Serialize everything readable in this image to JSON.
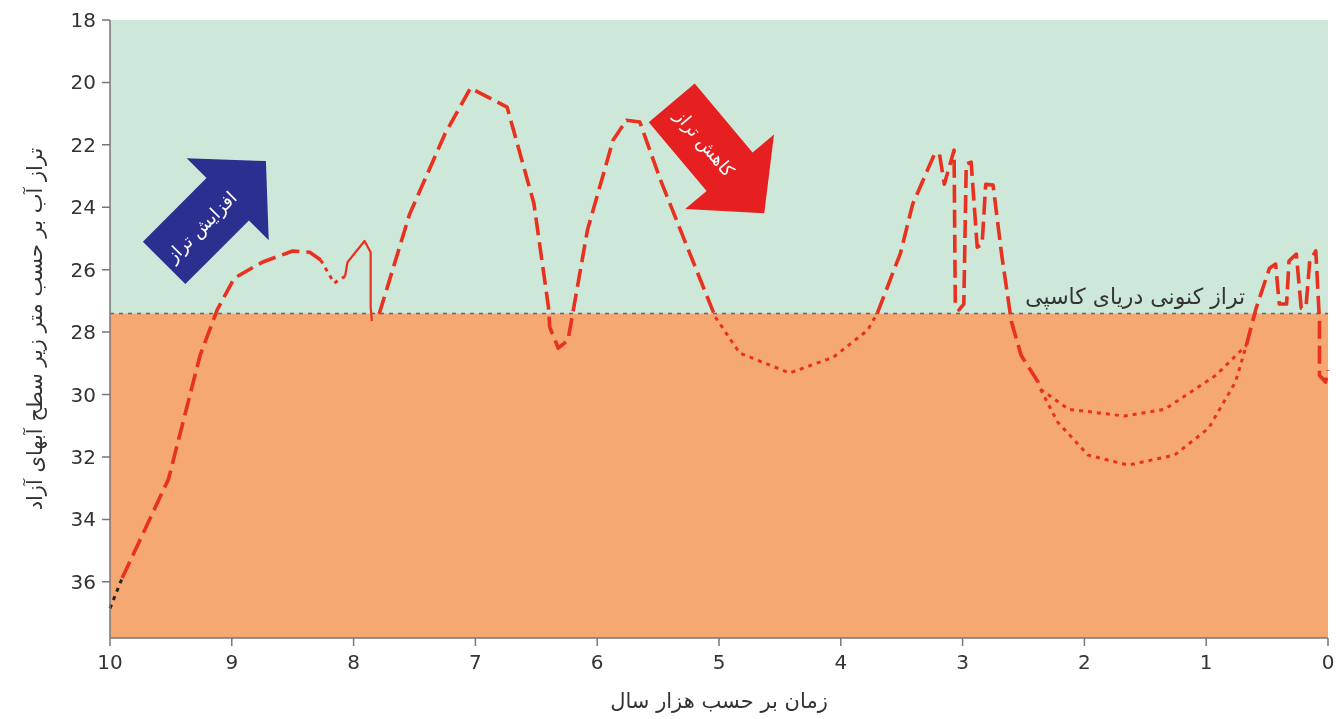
{
  "chart_data": {
    "type": "line",
    "xlabel": "زمان بر حسب هزار سال",
    "ylabel": "تراز آب بر حسب متر زیر سطح آبهای آزاد",
    "xlim": [
      10,
      0
    ],
    "ylim": [
      37.8,
      18
    ],
    "xticks": [
      10,
      9,
      8,
      7,
      6,
      5,
      4,
      3,
      2,
      1,
      0
    ],
    "yticks": [
      18,
      20,
      22,
      24,
      26,
      28,
      30,
      32,
      34,
      36
    ],
    "bands": [
      {
        "axis": "y",
        "from": 18,
        "to": 27.4,
        "color": "#cde8d8"
      },
      {
        "axis": "y",
        "from": 27.4,
        "to": 37.8,
        "color": "#f5a872"
      }
    ],
    "ref_lines": [
      {
        "axis": "y",
        "value": 27.4,
        "label": "تراز کنونی دریای کاسپی",
        "color": "#666666",
        "line_style": "dotted"
      }
    ],
    "annotations": [
      "افزایش تراز",
      "کاهش تراز"
    ],
    "series": [
      {
        "type": "line",
        "color": "#222222",
        "line_style": "dotted",
        "x": [
          10,
          9.9
        ],
        "values": [
          36.85,
          35.88
        ]
      },
      {
        "type": "line",
        "color": "#e8311f",
        "line_style": "dashed",
        "x": [
          9.9,
          9.52,
          9.26,
          9.12,
          8.98,
          8.75,
          8.5,
          8.36,
          8.27
        ],
        "values": [
          35.88,
          32.71,
          28.74,
          27.29,
          26.27,
          25.76,
          25.4,
          25.44,
          25.69
        ]
      },
      {
        "type": "line",
        "color": "#e8311f",
        "line_style": "dotted",
        "x": [
          8.27,
          8.16,
          8.07
        ],
        "values": [
          25.69,
          26.43,
          26.21
        ]
      },
      {
        "type": "line",
        "color": "#e8311f",
        "line_style": "solid",
        "x": [
          8.07,
          8.05,
          7.91,
          7.86,
          7.86,
          7.85
        ],
        "values": [
          26.21,
          25.76,
          25.08,
          25.44,
          27.2,
          27.65
        ]
      },
      {
        "type": "line",
        "color": "#e8311f",
        "line_style": "dashed",
        "x": [
          7.79,
          7.73,
          7.54,
          7.25,
          7.04,
          6.74,
          6.52,
          6.4,
          6.39,
          6.32,
          6.24,
          6.08,
          5.87,
          5.76,
          5.65,
          5.48,
          5.26,
          5.03
        ],
        "values": [
          27.42,
          26.65,
          24.22,
          21.65,
          20.18,
          20.79,
          23.87,
          27.2,
          27.84,
          28.51,
          28.26,
          24.73,
          21.85,
          21.21,
          21.27,
          23.13,
          25.28,
          27.52
        ]
      },
      {
        "type": "line",
        "color": "#e8311f",
        "line_style": "dotted",
        "x": [
          5.03,
          4.83,
          4.42,
          4.06,
          3.78,
          3.7
        ],
        "values": [
          27.52,
          28.67,
          29.31,
          28.8,
          27.94,
          27.39
        ]
      },
      {
        "type": "line",
        "color": "#e8311f",
        "line_style": "dashed",
        "x": [
          3.7,
          3.51,
          3.41,
          3.23,
          3.19,
          3.15,
          3.07,
          3.06,
          3.03,
          2.99,
          2.97,
          2.93,
          2.88,
          2.84,
          2.81,
          2.75,
          2.68,
          2.6,
          2.52,
          2.38,
          2.36
        ],
        "values": [
          27.39,
          25.47,
          23.9,
          22.29,
          22.29,
          23.26,
          22.17,
          27.1,
          27.29,
          27.1,
          22.62,
          22.55,
          25.28,
          25.18,
          23.26,
          23.29,
          25.5,
          27.65,
          28.74,
          29.6,
          29.83
        ]
      },
      {
        "type": "line",
        "color": "#e8311f",
        "line_style": "dotted",
        "x": [
          2.36,
          2.13,
          1.67,
          1.34,
          0.92,
          0.67
        ],
        "values": [
          29.83,
          30.47,
          30.69,
          30.47,
          29.38,
          28.42
        ]
      },
      {
        "type": "line",
        "color": "#e8311f",
        "line_style": "dotted",
        "x": [
          2.36,
          2.22,
          1.97,
          1.64,
          1.26,
          0.98,
          0.76,
          0.67
        ],
        "values": [
          29.83,
          30.88,
          31.94,
          32.26,
          31.94,
          31.08,
          29.6,
          28.42
        ]
      },
      {
        "type": "line",
        "color": "#e8311f",
        "line_style": "dashed",
        "x": [
          0.67,
          0.59,
          0.48,
          0.43,
          0.4,
          0.34,
          0.32,
          0.26,
          0.22,
          0.18,
          0.15,
          0.1,
          0.07,
          0.07,
          0.02,
          0
        ],
        "values": [
          28.42,
          27.23,
          25.95,
          25.82,
          27.1,
          27.1,
          25.72,
          25.5,
          27.23,
          27.17,
          25.72,
          25.4,
          27.65,
          29.38,
          29.6,
          29.22
        ]
      }
    ]
  }
}
